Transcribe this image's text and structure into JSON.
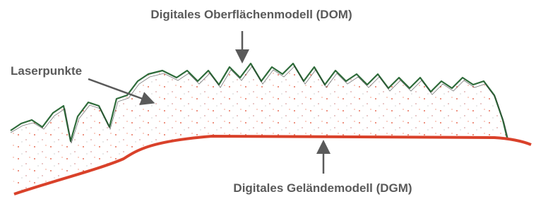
{
  "labels": {
    "dom": "Digitales Oberflächenmodell (DOM)",
    "points": "Laserpunkte",
    "dgm": "Digitales Geländemodell (DGM)"
  }
}
